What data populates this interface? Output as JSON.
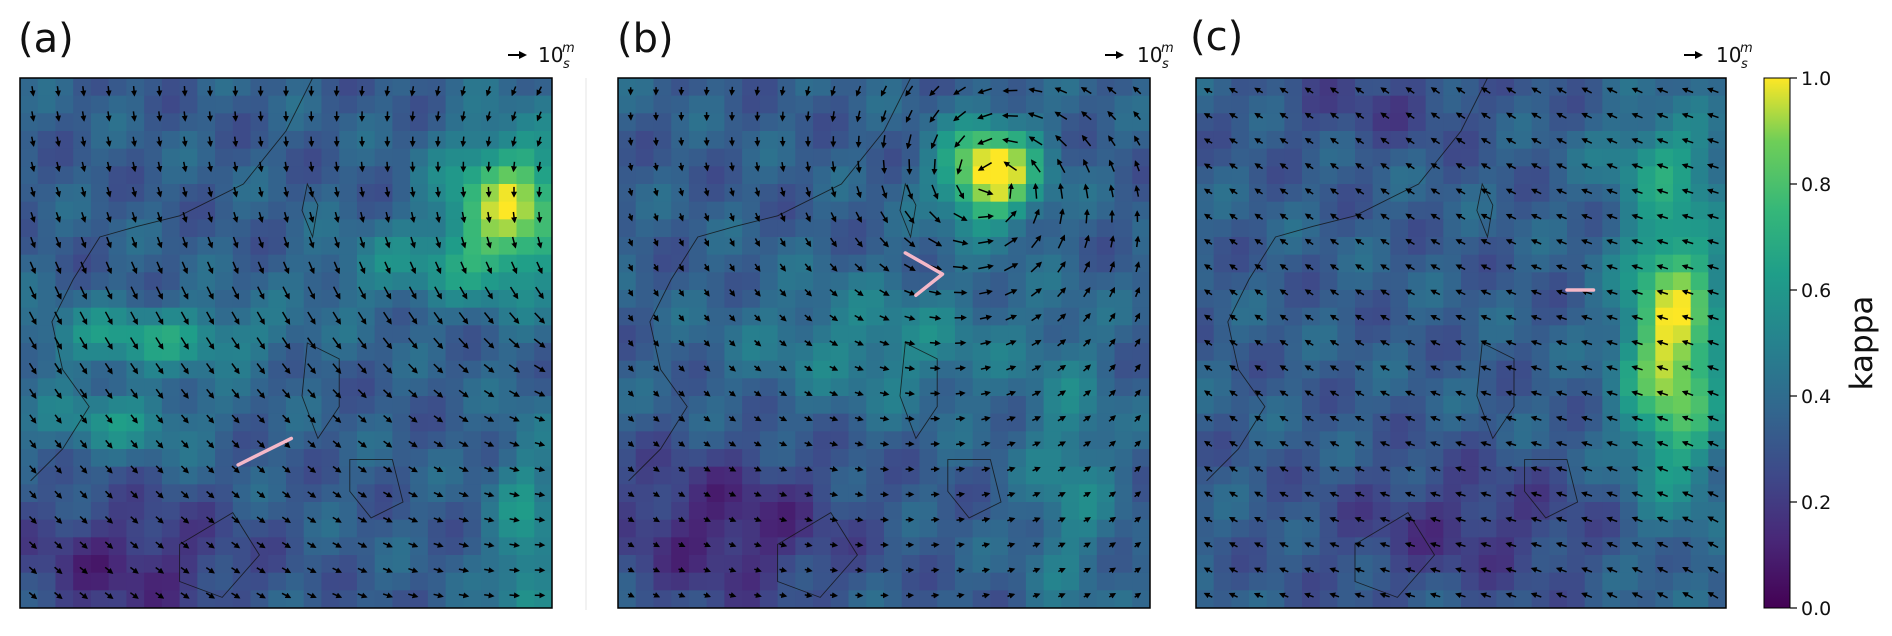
{
  "figure": {
    "panels": [
      {
        "label": "(a)",
        "scale_text": "10",
        "scale_unit_top": "m",
        "scale_unit_bottom": "s"
      },
      {
        "label": "(b)",
        "scale_text": "10",
        "scale_unit_top": "m",
        "scale_unit_bottom": "s"
      },
      {
        "label": "(c)",
        "scale_text": "10",
        "scale_unit_top": "m",
        "scale_unit_bottom": "s"
      }
    ],
    "colorbar": {
      "label": "kappa",
      "ticks": [
        "0.0",
        "0.2",
        "0.4",
        "0.6",
        "0.8",
        "1.0"
      ]
    }
  },
  "chart_data": [
    {
      "type": "heatmap",
      "title": "(a)",
      "colormap": "viridis",
      "clim": [
        0,
        1
      ],
      "overlay": "wind vectors",
      "reference_vector": "10 m/s",
      "blobs": [
        {
          "cx": 0.92,
          "cy": 0.25,
          "sx": 0.12,
          "sy": 0.14,
          "v": 0.6
        },
        {
          "cx": 0.72,
          "cy": 0.36,
          "sx": 0.16,
          "sy": 0.07,
          "v": 0.18
        },
        {
          "cx": 0.25,
          "cy": 0.49,
          "sx": 0.22,
          "sy": 0.06,
          "v": 0.3
        },
        {
          "cx": 0.18,
          "cy": 0.65,
          "sx": 0.16,
          "sy": 0.06,
          "v": 0.22
        },
        {
          "cx": 0.2,
          "cy": 0.92,
          "sx": 0.22,
          "sy": 0.12,
          "v": -0.2
        },
        {
          "cx": 0.95,
          "cy": 0.88,
          "sx": 0.06,
          "sy": 0.22,
          "v": 0.25
        }
      ],
      "flow": {
        "kind": "cyclone_east",
        "cx": 1.25,
        "cy": 0.35
      },
      "track": [
        [
          0.41,
          0.73
        ],
        [
          0.51,
          0.68
        ]
      ]
    },
    {
      "type": "heatmap",
      "title": "(b)",
      "colormap": "viridis",
      "clim": [
        0,
        1
      ],
      "overlay": "wind vectors",
      "reference_vector": "10 m/s",
      "blobs": [
        {
          "cx": 0.7,
          "cy": 0.18,
          "sx": 0.09,
          "sy": 0.09,
          "v": 0.75
        },
        {
          "cx": 0.5,
          "cy": 0.5,
          "sx": 0.26,
          "sy": 0.12,
          "v": 0.18
        },
        {
          "cx": 0.85,
          "cy": 0.75,
          "sx": 0.08,
          "sy": 0.25,
          "v": 0.18
        },
        {
          "cx": 0.2,
          "cy": 0.85,
          "sx": 0.22,
          "sy": 0.14,
          "v": -0.22
        }
      ],
      "flow": {
        "kind": "cyclone",
        "cx": 0.7,
        "cy": 0.2
      },
      "track": [
        [
          0.54,
          0.33
        ],
        [
          0.61,
          0.37
        ],
        [
          0.56,
          0.41
        ]
      ]
    },
    {
      "type": "heatmap",
      "title": "(c)",
      "colormap": "viridis",
      "clim": [
        0,
        1
      ],
      "overlay": "wind vectors",
      "reference_vector": "10 m/s",
      "blobs": [
        {
          "cx": 0.9,
          "cy": 0.5,
          "sx": 0.09,
          "sy": 0.26,
          "v": 0.65
        },
        {
          "cx": 0.88,
          "cy": 0.15,
          "sx": 0.12,
          "sy": 0.08,
          "v": 0.2
        },
        {
          "cx": 0.5,
          "cy": 0.85,
          "sx": 0.26,
          "sy": 0.12,
          "v": -0.15
        },
        {
          "cx": 0.35,
          "cy": 0.05,
          "sx": 0.2,
          "sy": 0.08,
          "v": -0.1
        }
      ],
      "flow": {
        "kind": "northeast_monsoon"
      },
      "track": [
        [
          0.7,
          0.4
        ],
        [
          0.75,
          0.4
        ]
      ]
    }
  ]
}
